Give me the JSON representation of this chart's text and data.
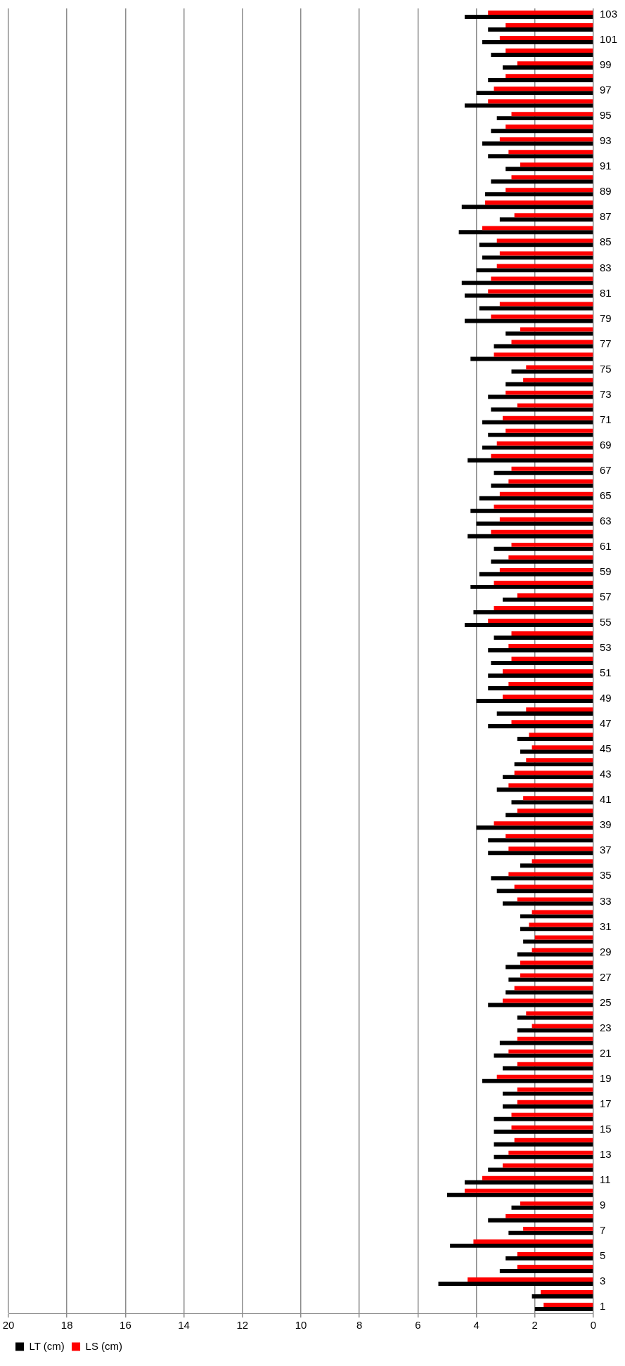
{
  "chart_data": {
    "type": "bar",
    "orientation": "horizontal",
    "categories": [
      "103",
      null,
      "101",
      null,
      "99",
      null,
      "97",
      null,
      "95",
      null,
      "93",
      null,
      "91",
      null,
      "89",
      null,
      "87",
      null,
      "85",
      null,
      "83",
      null,
      "81",
      null,
      "79",
      null,
      "77",
      null,
      "75",
      null,
      "73",
      null,
      "71",
      null,
      "69",
      null,
      "67",
      null,
      "65",
      null,
      "63",
      null,
      "61",
      null,
      "59",
      null,
      "57",
      null,
      "55",
      null,
      "53",
      null,
      "51",
      null,
      "49",
      null,
      "47",
      null,
      "45",
      null,
      "43",
      null,
      "41",
      null,
      "39",
      null,
      "37",
      null,
      "35",
      null,
      "33",
      null,
      "31",
      null,
      "29",
      null,
      "27",
      null,
      "25",
      null,
      "23",
      null,
      "21",
      null,
      "19",
      null,
      "17",
      null,
      "15",
      null,
      "13",
      null,
      "11",
      null,
      "9",
      null,
      "7",
      null,
      "5",
      null,
      "3",
      null,
      "1"
    ],
    "series": [
      {
        "name": "LT (cm)",
        "color": "#000000",
        "values": [
          4.4,
          3.6,
          3.8,
          3.5,
          3.1,
          3.6,
          4.0,
          4.4,
          3.3,
          3.5,
          3.8,
          3.6,
          3.0,
          3.5,
          3.7,
          4.5,
          3.2,
          4.6,
          3.9,
          3.8,
          4.0,
          4.5,
          4.4,
          3.9,
          4.4,
          3.0,
          3.4,
          4.2,
          2.8,
          3.0,
          3.6,
          3.5,
          3.8,
          3.6,
          3.8,
          4.3,
          3.4,
          3.5,
          3.9,
          4.2,
          4.0,
          4.3,
          3.4,
          3.5,
          3.9,
          4.2,
          3.1,
          4.1,
          4.4,
          3.4,
          3.6,
          3.5,
          3.6,
          3.6,
          4.0,
          3.3,
          3.6,
          2.6,
          2.5,
          2.7,
          3.1,
          3.3,
          2.8,
          3.0,
          4.0,
          3.6,
          3.6,
          2.5,
          3.5,
          3.3,
          3.1,
          2.5,
          2.5,
          2.4,
          2.6,
          3.0,
          2.9,
          3.0,
          3.6,
          2.6,
          2.6,
          3.2,
          3.4,
          3.1,
          3.8,
          3.1,
          3.1,
          3.4,
          3.4,
          3.4,
          3.4,
          3.6,
          4.4,
          5.0,
          2.8,
          3.6,
          2.9,
          4.9,
          3.0,
          3.2,
          5.3,
          2.1,
          2.0
        ]
      },
      {
        "name": "LS (cm)",
        "color": "#ff0000",
        "values": [
          3.6,
          3.0,
          3.2,
          3.0,
          2.6,
          3.0,
          3.4,
          3.6,
          2.8,
          3.0,
          3.2,
          2.9,
          2.5,
          2.8,
          3.0,
          3.7,
          2.7,
          3.8,
          3.3,
          3.2,
          3.3,
          3.5,
          3.6,
          3.2,
          3.5,
          2.5,
          2.8,
          3.4,
          2.3,
          2.4,
          3.0,
          2.6,
          3.1,
          3.0,
          3.3,
          3.5,
          2.8,
          2.9,
          3.2,
          3.4,
          3.2,
          3.5,
          2.8,
          2.9,
          3.2,
          3.4,
          2.6,
          3.4,
          3.6,
          2.8,
          2.9,
          2.8,
          3.1,
          2.9,
          3.1,
          2.3,
          2.8,
          2.2,
          2.1,
          2.3,
          2.7,
          2.9,
          2.4,
          2.6,
          3.4,
          3.0,
          2.9,
          2.1,
          2.9,
          2.7,
          2.6,
          2.1,
          2.2,
          2.0,
          2.1,
          2.5,
          2.5,
          2.7,
          3.1,
          2.3,
          2.1,
          2.6,
          2.9,
          2.6,
          3.3,
          2.6,
          2.6,
          2.8,
          2.8,
          2.7,
          2.9,
          3.1,
          3.8,
          4.4,
          2.5,
          3.0,
          2.4,
          4.1,
          2.6,
          2.6,
          4.3,
          1.8,
          1.7
        ]
      }
    ],
    "xlim": [
      20,
      0
    ],
    "xticks": [
      0,
      2,
      4,
      6,
      8,
      10,
      12,
      14,
      16,
      18,
      20
    ],
    "grid": "x",
    "legend": "bottom left"
  }
}
